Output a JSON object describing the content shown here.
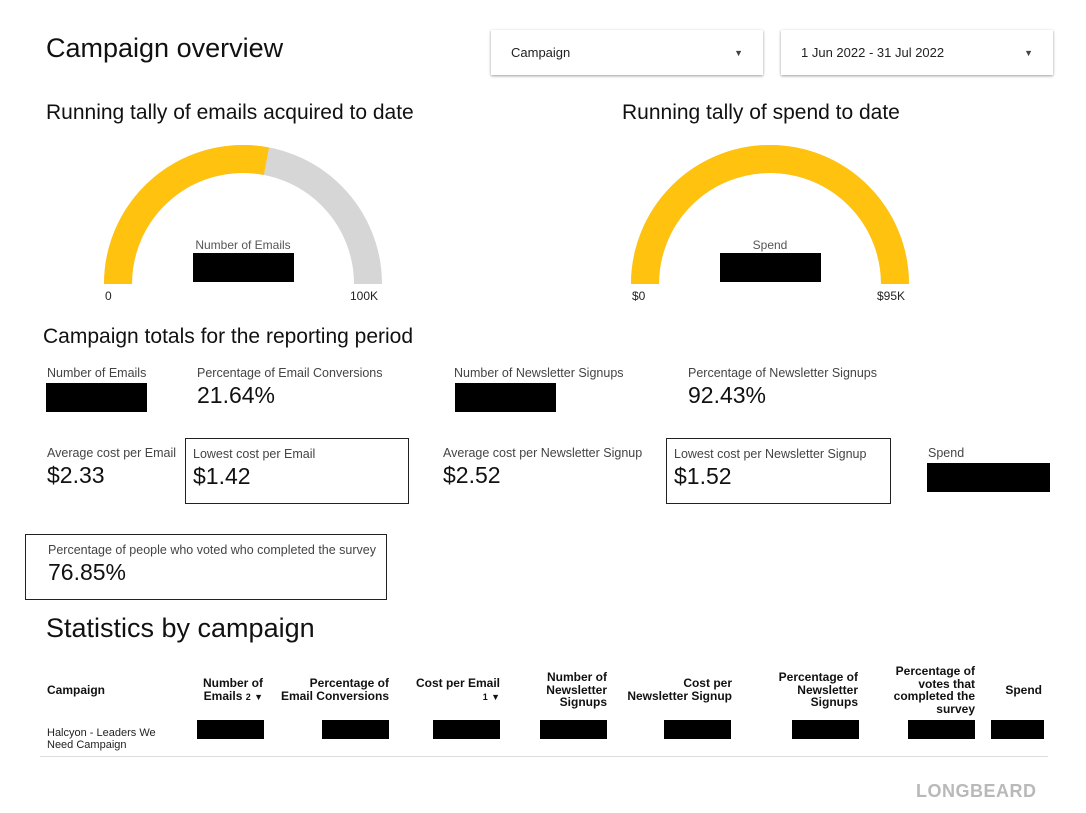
{
  "page_title": "Campaign overview",
  "filters": {
    "campaign": {
      "value": "Campaign",
      "icon": "caret-down-icon"
    },
    "date_range": {
      "value": "1 Jun 2022 - 31 Jul 2022",
      "icon": "caret-down-icon"
    }
  },
  "gauges": {
    "emails": {
      "title": "Running tally of emails acquired to date",
      "label": "Number of Emails",
      "min": "0",
      "max": "100K",
      "fill_fraction": 0.56,
      "fill_color": "#FFC20E",
      "track_color": "#D6D6D6"
    },
    "spend": {
      "title": "Running tally of spend to date",
      "label": "Spend",
      "min": "$0",
      "max": "$95K",
      "fill_fraction": 1.0,
      "fill_color": "#FFC20E",
      "track_color": "#D6D6D6"
    }
  },
  "totals": {
    "title": "Campaign totals for the reporting period",
    "number_of_emails": {
      "label": "Number of Emails"
    },
    "pct_email_conversions": {
      "label": "Percentage of Email Conversions",
      "value": "21.64%"
    },
    "number_of_newsletter_signups": {
      "label": "Number of Newsletter Signups"
    },
    "pct_newsletter_signups": {
      "label": "Percentage of Newsletter Signups",
      "value": "92.43%"
    },
    "avg_cost_per_email": {
      "label": "Average cost per Email",
      "value": "$2.33"
    },
    "lowest_cost_per_email": {
      "label": "Lowest cost per Email",
      "value": "$1.42"
    },
    "avg_cost_per_newsletter": {
      "label": "Average cost per Newsletter Signup",
      "value": "$2.52"
    },
    "lowest_cost_per_newsletter": {
      "label": "Lowest cost per Newsletter Signup",
      "value": "$1.52"
    },
    "spend": {
      "label": "Spend"
    },
    "pct_survey": {
      "label": "Percentage of people who voted who completed the survey",
      "value": "76.85%"
    }
  },
  "stats": {
    "title": "Statistics by campaign",
    "columns": {
      "campaign": "Campaign",
      "emails_1": "Number of",
      "emails_2": "Emails",
      "emails_sort_badge": "2",
      "emails_sort_icon": "sort-desc-icon",
      "conv_1": "Percentage of",
      "conv_2": "Email Conversions",
      "cpe": "Cost per Email",
      "cpe_sort_badge": "1",
      "cpe_sort_icon": "sort-desc-icon",
      "ns_1": "Number of",
      "ns_2": "Newsletter",
      "ns_3": "Signups",
      "cpns_1": "Cost per",
      "cpns_2": "Newsletter Signup",
      "pns_1": "Percentage of",
      "pns_2": "Newsletter",
      "pns_3": "Signups",
      "pvs_1": "Percentage of",
      "pvs_2": "votes that",
      "pvs_3": "completed the",
      "pvs_4": "survey",
      "spend": "Spend"
    },
    "rows": [
      {
        "campaign_line1": "Halcyon - Leaders We",
        "campaign_line2": "Need Campaign"
      }
    ]
  },
  "brand": "LONGBEARD"
}
